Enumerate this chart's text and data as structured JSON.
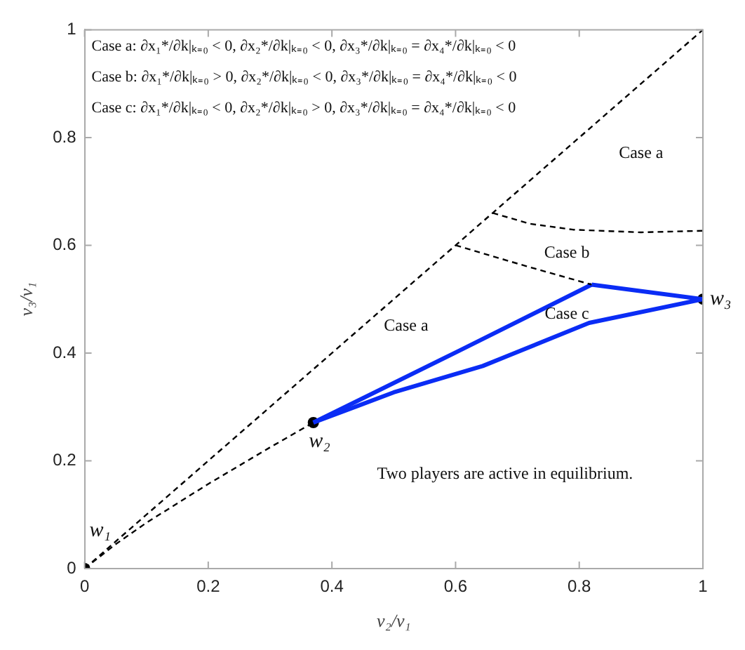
{
  "chart_data": {
    "type": "line",
    "xlabel": "v₂/v₁",
    "ylabel": "v₃/v₁",
    "xlim": [
      0,
      1
    ],
    "ylim": [
      0,
      1
    ],
    "xticks": [
      0,
      0.2,
      0.4,
      0.6,
      0.8,
      1
    ],
    "yticks": [
      0,
      0.2,
      0.4,
      0.6,
      0.8,
      1
    ],
    "grid": false,
    "legend": false,
    "series": [
      {
        "line_style": "dashed",
        "color": "#000000",
        "x": [
          0,
          1
        ],
        "values": [
          0,
          1
        ]
      },
      {
        "line_style": "dashed",
        "color": "#000000",
        "x": [
          0,
          0.05,
          0.1,
          0.2,
          0.3,
          0.37
        ],
        "values": [
          0,
          0.045,
          0.085,
          0.157,
          0.225,
          0.271
        ]
      },
      {
        "line_style": "dashed",
        "color": "#000000",
        "x": [
          0.6,
          0.715,
          0.82
        ],
        "values": [
          0.6,
          0.561,
          0.527
        ]
      },
      {
        "line_style": "dashed",
        "color": "#000000",
        "x": [
          0.66,
          0.72,
          0.79,
          0.9,
          1
        ],
        "values": [
          0.66,
          0.64,
          0.629,
          0.624,
          0.627
        ]
      },
      {
        "line_style": "solid",
        "color": "#0a2cf5",
        "x": [
          0.37,
          0.607,
          0.82
        ],
        "values": [
          0.271,
          0.405,
          0.527
        ]
      },
      {
        "line_style": "solid",
        "color": "#0a2cf5",
        "x": [
          0.82,
          1
        ],
        "values": [
          0.527,
          0.5
        ]
      },
      {
        "line_style": "solid",
        "color": "#0a2cf5",
        "x": [
          0.37,
          0.5,
          0.644,
          0.816,
          1
        ],
        "values": [
          0.271,
          0.327,
          0.376,
          0.456,
          0.5
        ]
      },
      {
        "type": "scatter",
        "marker": "circle",
        "color": "#000000",
        "x": [
          0,
          0.37,
          1
        ],
        "values": [
          0,
          0.271,
          0.5
        ]
      }
    ],
    "annotations": [
      "Case a: ∂x₁*/∂k|ₖ₌₀ < 0, ∂x₂*/∂k|ₖ₌₀ < 0, ∂x₃*/∂k|ₖ₌₀ = ∂x₄*/∂k|ₖ₌₀ < 0",
      "Case b: ∂x₁*/∂k|ₖ₌₀ > 0, ∂x₂*/∂k|ₖ₌₀ < 0, ∂x₃*/∂k|ₖ₌₀ = ∂x₄*/∂k|ₖ₌₀ < 0",
      "Case c: ∂x₁*/∂k|ₖ₌₀ < 0, ∂x₂*/∂k|ₖ₌₀ > 0, ∂x₃*/∂k|ₖ₌₀ = ∂x₄*/∂k|ₖ₌₀ < 0",
      "w₁",
      "w₂",
      "w₃",
      "Case a",
      "Case b",
      "Case a",
      "Case c",
      "Two players are active in equilibrium."
    ]
  }
}
